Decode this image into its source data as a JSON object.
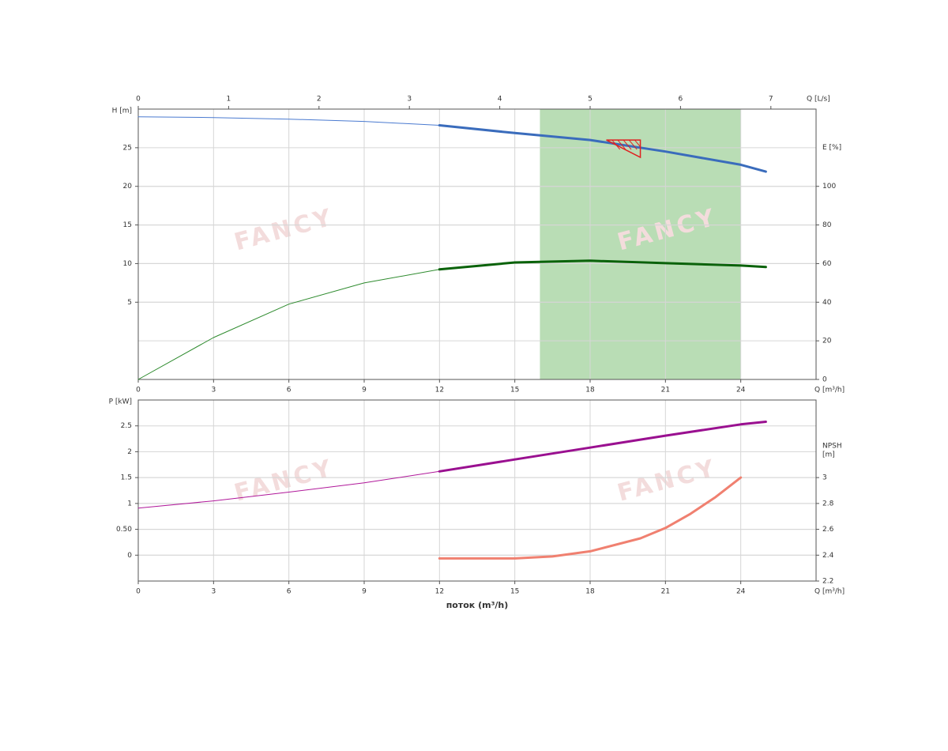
{
  "chart_data": [
    {
      "type": "line",
      "x_label": "Q [m³/h]",
      "x2_label": "Q [L/s]",
      "y_label": "H [m]",
      "y2_label": "E [%]",
      "watermark": "FANCY",
      "xlim": [
        0,
        27
      ],
      "xticks": [
        0,
        3,
        6,
        9,
        12,
        15,
        18,
        21,
        24
      ],
      "x2lim": [
        0,
        7.5
      ],
      "x2ticks": [
        0,
        1,
        2,
        3,
        4,
        5,
        6,
        7
      ],
      "ylim": [
        -5,
        30
      ],
      "yticks": [
        5,
        10,
        15,
        20,
        25
      ],
      "y_color": "#3f6fc5",
      "y2lim": [
        0,
        140
      ],
      "y2ticks": [
        0,
        20,
        40,
        60,
        80,
        100
      ],
      "y2_color": "#1a7a1a",
      "grid": true,
      "band": {
        "range": [
          16,
          24
        ],
        "color": "#b9ddb5"
      },
      "duty_point": {
        "x": 20,
        "y": 26,
        "color": "#e02020"
      },
      "series": [
        {
          "x": [
            0,
            3,
            6,
            9,
            12
          ],
          "values": [
            29.0,
            28.9,
            28.7,
            28.4,
            27.9
          ],
          "color": "#4a7ad0",
          "width": 1
        },
        {
          "x": [
            12,
            15,
            18,
            21,
            24,
            25
          ],
          "values": [
            27.9,
            26.9,
            26.0,
            24.5,
            22.8,
            21.9
          ],
          "color": "#3a6cbc",
          "width": 3
        },
        {
          "x": [
            0,
            3,
            6,
            9,
            12
          ],
          "values": [
            0,
            21.7,
            39,
            50,
            57
          ],
          "color": "#2e8b2e",
          "width": 1,
          "axis": "y2"
        },
        {
          "x": [
            12,
            15,
            18,
            21,
            24,
            25
          ],
          "values": [
            57,
            60.6,
            61.5,
            60.2,
            59,
            58.2
          ],
          "color": "#0a620a",
          "width": 3,
          "axis": "y2"
        }
      ]
    },
    {
      "type": "line",
      "x_label": "Q [m³/h]",
      "x_title": "поток (m³/h)",
      "y_label": "P [kW]",
      "y2_label": [
        "NPSH",
        "[m]"
      ],
      "watermark": "FANCY",
      "xlim": [
        0,
        27
      ],
      "xticks": [
        0,
        3,
        6,
        9,
        12,
        15,
        18,
        21,
        24
      ],
      "ylim": [
        -0.5,
        3
      ],
      "yticks": [
        0,
        {
          "value": 0.5,
          "label": "0.50"
        },
        1,
        1.5,
        2,
        2.5
      ],
      "y_color": "#b0189a",
      "y2lim": [
        2.2,
        3.6
      ],
      "y2ticks": [
        2.2,
        2.4,
        2.6,
        2.8,
        3
      ],
      "y2_color": "#f07060",
      "grid": true,
      "series": [
        {
          "x": [
            0,
            3,
            6,
            9,
            12
          ],
          "values": [
            0.91,
            1.05,
            1.22,
            1.4,
            1.62
          ],
          "color": "#b0189a",
          "width": 1
        },
        {
          "x": [
            12,
            15,
            18,
            21,
            24,
            25
          ],
          "values": [
            1.62,
            1.85,
            2.08,
            2.31,
            2.53,
            2.58
          ],
          "color": "#9a1090",
          "width": 3
        },
        {
          "x": [
            12,
            15,
            16.5,
            18,
            20,
            21,
            22,
            23,
            24
          ],
          "values": [
            2.375,
            2.375,
            2.39,
            2.43,
            2.53,
            2.61,
            2.72,
            2.85,
            3.0
          ],
          "color": "#f08070",
          "width": 3,
          "axis": "y2"
        }
      ]
    }
  ]
}
